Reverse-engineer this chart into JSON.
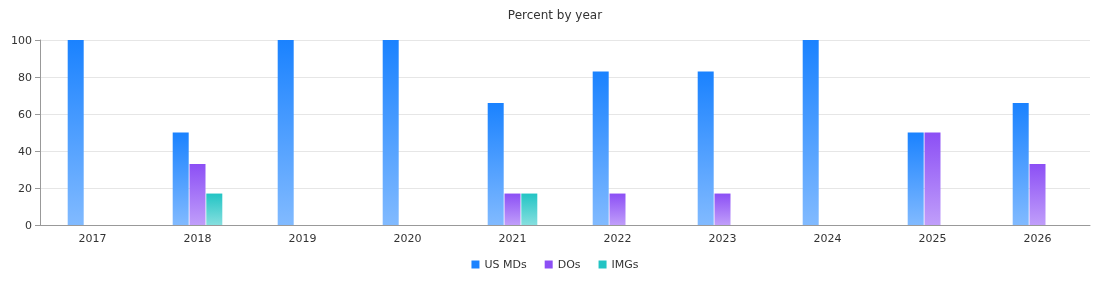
{
  "chart_data": {
    "type": "bar",
    "title": "Percent by year",
    "categories": [
      "2017",
      "2018",
      "2019",
      "2020",
      "2021",
      "2022",
      "2023",
      "2024",
      "2025",
      "2026"
    ],
    "series": [
      {
        "name": "US MDs",
        "color": "#1a82ff",
        "values": [
          100,
          50,
          100,
          100,
          66,
          83,
          83,
          100,
          50,
          66
        ]
      },
      {
        "name": "DOs",
        "color": "#8c4ff5",
        "values": [
          0,
          33,
          0,
          0,
          17,
          17,
          17,
          0,
          50,
          33
        ]
      },
      {
        "name": "IMGs",
        "color": "#22c4c4",
        "values": [
          0,
          17,
          0,
          0,
          17,
          0,
          0,
          0,
          0,
          0
        ]
      }
    ],
    "ylim": [
      0,
      100
    ],
    "yticks": [
      0,
      20,
      40,
      60,
      80,
      100
    ],
    "grid": "y",
    "legend": "bottom"
  }
}
